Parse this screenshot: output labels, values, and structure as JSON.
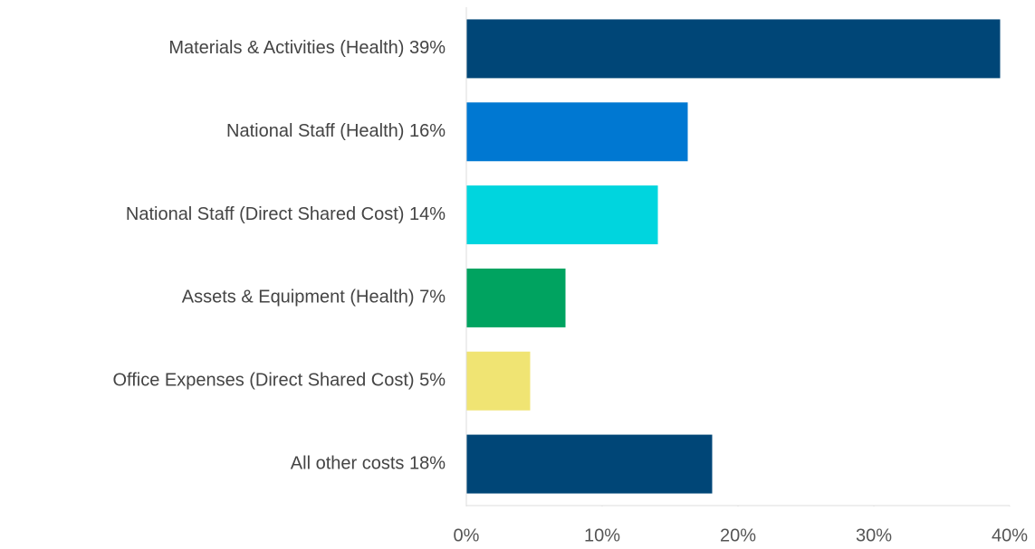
{
  "chart_data": {
    "type": "barh",
    "categories": [
      "Materials & Activities (Health) 39%",
      "National Staff (Health) 16%",
      "National Staff (Direct Shared Cost) 14%",
      "Assets & Equipment (Health) 7%",
      "Office Expenses (Direct Shared Cost) 5%",
      "All other costs 18%"
    ],
    "values": [
      39.3,
      16.3,
      14.1,
      7.3,
      4.7,
      18.1
    ],
    "colors": [
      "#004677",
      "#0078d2",
      "#00d5de",
      "#00a360",
      "#f0e473",
      "#004677"
    ],
    "xlim": [
      0,
      40
    ],
    "xticks": [
      {
        "value": 0,
        "label": "0%"
      },
      {
        "value": 10,
        "label": "10%"
      },
      {
        "value": 20,
        "label": "20%"
      },
      {
        "value": 30,
        "label": "30%"
      },
      {
        "value": 40,
        "label": "40%"
      }
    ]
  }
}
